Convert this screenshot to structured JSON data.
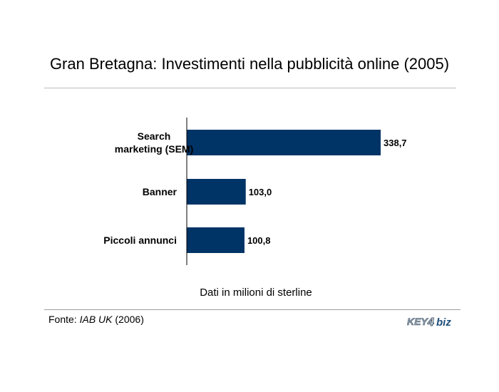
{
  "header": {
    "title": "Gran Bretagna: Investimenti nella pubblicità online (2005)"
  },
  "chart_data": {
    "type": "bar",
    "orientation": "horizontal",
    "categories": [
      "Search marketing (SEM)",
      "Banner",
      "Piccoli annunci"
    ],
    "category_lines": [
      [
        "Search",
        "marketing (SEM)"
      ],
      [
        "Banner"
      ],
      [
        "Piccoli annunci"
      ]
    ],
    "values": [
      338.7,
      103.0,
      100.8
    ],
    "value_labels": [
      "338,7",
      "103,0",
      "100,8"
    ],
    "xlim": [
      0,
      345
    ],
    "bar_color": "#003366",
    "grid": false,
    "legend": "none"
  },
  "footer": {
    "note": "Dati in milioni di sterline",
    "source_prefix": "Fonte: ",
    "source_name": "IAB UK",
    "source_suffix": " (2006)",
    "logo_text": "KEY4biz"
  }
}
